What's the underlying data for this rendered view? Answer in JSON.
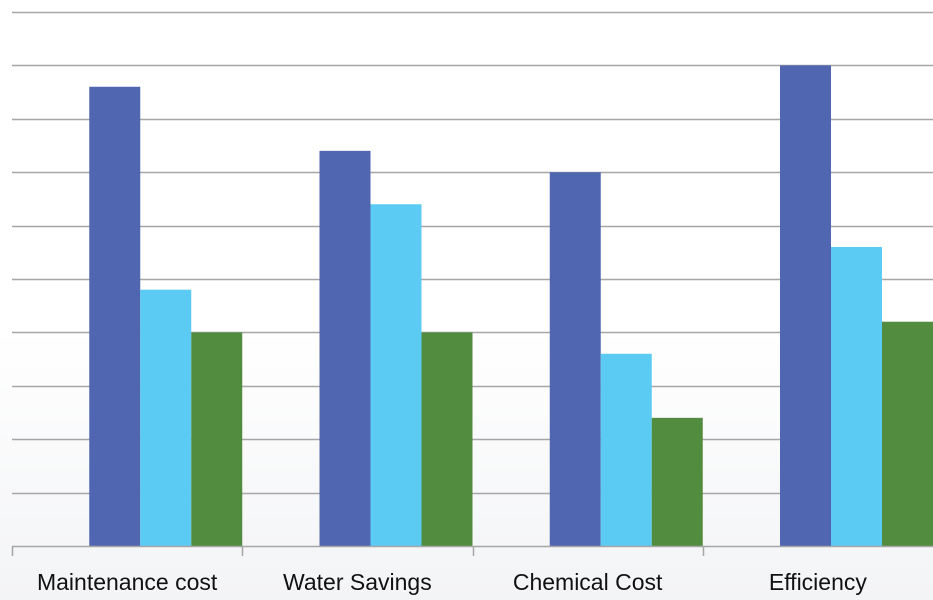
{
  "chart_data": {
    "type": "bar",
    "title": "",
    "xlabel": "",
    "ylabel": "",
    "categories": [
      "Maintenance cost",
      "Water Savings",
      "Chemical Cost",
      "Efficiency"
    ],
    "series": [
      {
        "color": "#5166b0",
        "values": [
          86,
          74,
          70,
          90
        ]
      },
      {
        "color": "#5bcbf3",
        "values": [
          48,
          64,
          36,
          56
        ]
      },
      {
        "color": "#528c3f",
        "values": [
          40,
          40,
          24,
          42
        ]
      }
    ],
    "ylim": [
      0,
      100
    ],
    "ytick_step": 10,
    "grid": true,
    "show_y_tick_labels": false,
    "legend": "none"
  }
}
